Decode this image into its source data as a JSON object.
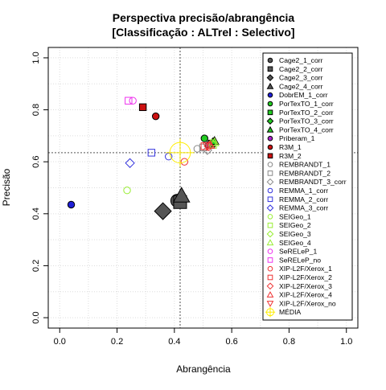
{
  "chart_data": {
    "type": "scatter",
    "title": "Perspectiva precisão/abrangência",
    "subtitle": "[Classificação : ALTrel : Selectivo]",
    "xlabel": "Abrangência",
    "ylabel": "Precisão",
    "xlim": [
      0.0,
      1.0
    ],
    "ylim": [
      0.0,
      1.0
    ],
    "x_ticks": [
      "0.0",
      "0.2",
      "0.4",
      "0.6",
      "0.8",
      "1.0"
    ],
    "y_ticks": [
      "0.0",
      "0.2",
      "0.4",
      "0.6",
      "0.8",
      "1.0"
    ],
    "grid": true,
    "legend_position": "right",
    "reference_lines": {
      "x": 0.42,
      "y": 0.635
    },
    "series": [
      {
        "name": "Cage2_1_corr",
        "marker": "circle-filled",
        "color": "#555555",
        "points": [
          [
            0.41,
            0.45
          ]
        ]
      },
      {
        "name": "Cage2_2_corr",
        "marker": "square-filled",
        "color": "#555555",
        "points": [
          [
            0.42,
            0.445
          ]
        ]
      },
      {
        "name": "Cage2_3_corr",
        "marker": "diamond-filled",
        "color": "#555555",
        "points": [
          [
            0.36,
            0.41
          ]
        ]
      },
      {
        "name": "Cage2_4_corr",
        "marker": "triangle-filled",
        "color": "#555555",
        "points": [
          [
            0.425,
            0.47
          ]
        ]
      },
      {
        "name": "DobrEM_1_corr",
        "marker": "circle-filled",
        "color": "#1f1fd6",
        "points": [
          [
            0.04,
            0.435
          ]
        ]
      },
      {
        "name": "PorTexTO_1_corr",
        "marker": "circle-filled",
        "color": "#22cc22",
        "points": [
          [
            0.505,
            0.69
          ]
        ]
      },
      {
        "name": "PorTexTO_2_corr",
        "marker": "square-filled",
        "color": "#22cc22",
        "points": [
          [
            0.53,
            0.67
          ]
        ]
      },
      {
        "name": "PorTexTO_3_corr",
        "marker": "diamond-filled",
        "color": "#22cc22",
        "points": [
          [
            0.535,
            0.675
          ]
        ]
      },
      {
        "name": "PorTexTO_4_corr",
        "marker": "triangle-filled",
        "color": "#22cc22",
        "points": [
          [
            0.54,
            0.68
          ]
        ]
      },
      {
        "name": "Priberam_1",
        "marker": "circle-filled",
        "color": "#aa22cc",
        "points": [
          [
            0.52,
            0.665
          ]
        ]
      },
      {
        "name": "R3M_1",
        "marker": "circle-filled",
        "color": "#cc1111",
        "points": [
          [
            0.335,
            0.775
          ]
        ]
      },
      {
        "name": "R3M_2",
        "marker": "square-filled",
        "color": "#cc1111",
        "points": [
          [
            0.29,
            0.81
          ]
        ]
      },
      {
        "name": "REMBRANDT_1",
        "marker": "circle-open",
        "color": "#888888",
        "points": [
          [
            0.48,
            0.65
          ]
        ]
      },
      {
        "name": "REMBRANDT_2",
        "marker": "square-open",
        "color": "#888888",
        "points": [
          [
            0.5,
            0.655
          ]
        ]
      },
      {
        "name": "REMBRANDT_3_corr",
        "marker": "diamond-open",
        "color": "#888888",
        "points": [
          [
            0.515,
            0.645
          ]
        ]
      },
      {
        "name": "REMMA_1_corr",
        "marker": "circle-open",
        "color": "#3333dd",
        "points": [
          [
            0.38,
            0.62
          ]
        ]
      },
      {
        "name": "REMMA_2_corr",
        "marker": "square-open",
        "color": "#3333dd",
        "points": [
          [
            0.32,
            0.635
          ]
        ]
      },
      {
        "name": "REMMA_3_corr",
        "marker": "diamond-open",
        "color": "#3333dd",
        "points": [
          [
            0.245,
            0.595
          ]
        ]
      },
      {
        "name": "SEIGeo_1",
        "marker": "circle-open",
        "color": "#99ee33",
        "points": [
          [
            0.235,
            0.49
          ]
        ]
      },
      {
        "name": "SEIGeo_2",
        "marker": "square-open",
        "color": "#99ee33",
        "points": [
          [
            0.535,
            0.665
          ]
        ]
      },
      {
        "name": "SEIGeo_3",
        "marker": "diamond-open",
        "color": "#99ee33",
        "points": [
          [
            0.53,
            0.67
          ]
        ]
      },
      {
        "name": "SEIGeo_4",
        "marker": "triangle-open",
        "color": "#99ee33",
        "points": [
          [
            0.54,
            0.675
          ]
        ]
      },
      {
        "name": "SeRELeP_1",
        "marker": "circle-open",
        "color": "#ee33ee",
        "points": [
          [
            0.255,
            0.835
          ]
        ]
      },
      {
        "name": "SeRELeP_no",
        "marker": "square-open",
        "color": "#ee33ee",
        "points": [
          [
            0.24,
            0.835
          ]
        ]
      },
      {
        "name": "XIP-L2F/Xerox_1",
        "marker": "circle-open",
        "color": "#ee3333",
        "points": [
          [
            0.435,
            0.6
          ]
        ]
      },
      {
        "name": "XIP-L2F/Xerox_2",
        "marker": "square-open",
        "color": "#ee3333",
        "points": [
          [
            0.505,
            0.66
          ]
        ]
      },
      {
        "name": "XIP-L2F/Xerox_3",
        "marker": "diamond-open",
        "color": "#ee3333",
        "points": [
          [
            0.52,
            0.66
          ]
        ]
      },
      {
        "name": "XIP-L2F/Xerox_4",
        "marker": "triangle-open",
        "color": "#ee3333",
        "points": [
          [
            0.525,
            0.665
          ]
        ]
      },
      {
        "name": "XIP-L2F/Xerox_no",
        "marker": "triangle-down-open",
        "color": "#ee3333",
        "points": [
          [
            0.515,
            0.66
          ]
        ]
      },
      {
        "name": "MÉDIA",
        "marker": "crosshair",
        "color": "#ffee00",
        "points": [
          [
            0.42,
            0.635
          ]
        ]
      }
    ]
  }
}
